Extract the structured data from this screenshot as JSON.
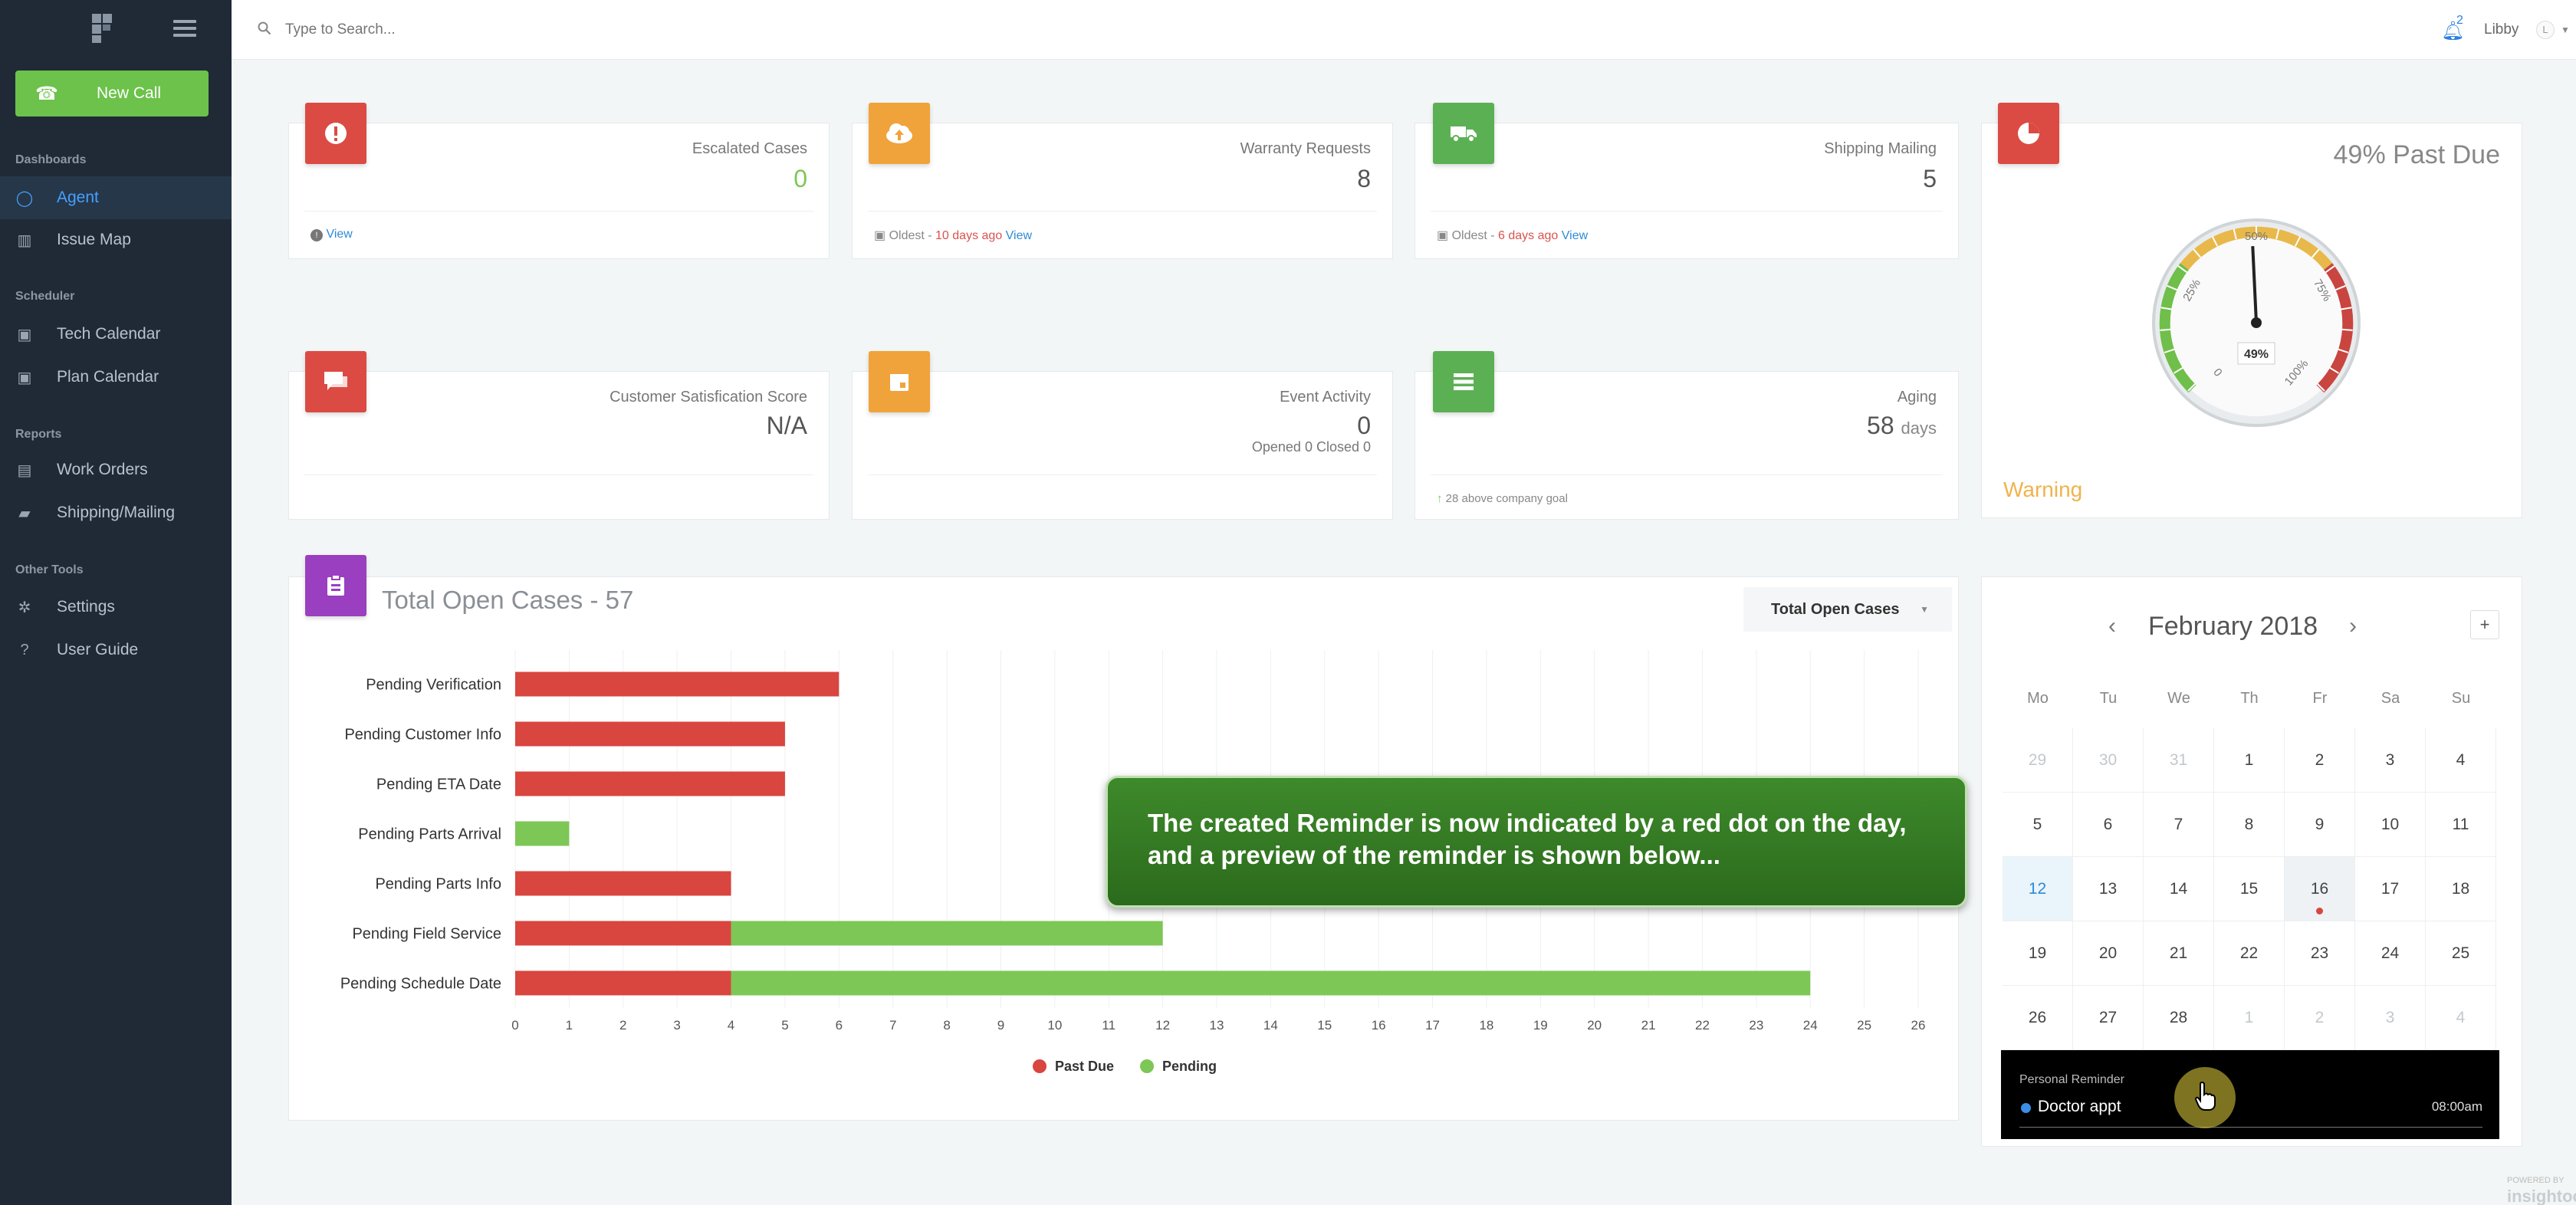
{
  "sidebar": {
    "new_call_label": "New Call",
    "sections": [
      "Dashboards",
      "Scheduler",
      "Reports",
      "Other Tools"
    ],
    "items": [
      {
        "label": "Agent",
        "icon": "circle-icon",
        "active": true
      },
      {
        "label": "Issue Map",
        "icon": "map-icon"
      },
      {
        "label": "Tech Calendar",
        "icon": "calendar-icon"
      },
      {
        "label": "Plan Calendar",
        "icon": "calendar-icon"
      },
      {
        "label": "Work Orders",
        "icon": "file-icon"
      },
      {
        "label": "Shipping/Mailing",
        "icon": "truck-icon"
      },
      {
        "label": "Settings",
        "icon": "gear-icon"
      },
      {
        "label": "User Guide",
        "icon": "help-icon"
      }
    ]
  },
  "topbar": {
    "search_placeholder": "Type to Search...",
    "notifications": "2",
    "user": "Libby",
    "avatar": "L"
  },
  "cards": {
    "escalated": {
      "title": "Escalated Cases",
      "value": "0",
      "foot_link": "View"
    },
    "warranty": {
      "title": "Warranty Requests",
      "value": "8",
      "foot_pre": "Oldest - ",
      "foot_red": "10 days ago",
      "foot_link": "View"
    },
    "shipping": {
      "title": "Shipping Mailing",
      "value": "5",
      "foot_pre": "Oldest - ",
      "foot_red": "6 days ago",
      "foot_link": "View"
    },
    "csat": {
      "title": "Customer Satisfication Score",
      "value": "N/A"
    },
    "event": {
      "title": "Event Activity",
      "value": "0",
      "sub": "Opened 0 Closed 0"
    },
    "aging": {
      "title": "Aging",
      "value": "58",
      "unit": "days",
      "foot": "28 above company goal"
    }
  },
  "gauge": {
    "title": "49% Past Due",
    "value_label": "49%",
    "value": 49,
    "ticks": [
      "25%",
      "50%",
      "75%",
      "100%",
      "0"
    ],
    "status": "Warning"
  },
  "colors": {
    "past_due": "#d9453f",
    "pending": "#7dc756",
    "accent": "#2d8bd6",
    "warning": "#f0b34b"
  },
  "chart_data": {
    "type": "bar",
    "orientation": "horizontal",
    "stacked": true,
    "title": "Total Open Cases - 57",
    "selector": "Total Open Cases",
    "categories": [
      "Pending Verification",
      "Pending Customer Info",
      "Pending ETA Date",
      "Pending Parts Arrival",
      "Pending Parts Info",
      "Pending Field Service",
      "Pending Schedule Date"
    ],
    "series": [
      {
        "name": "Past Due",
        "values": [
          6,
          5,
          5,
          0,
          4,
          4,
          4
        ]
      },
      {
        "name": "Pending",
        "values": [
          0,
          0,
          0,
          1,
          0,
          8,
          20
        ]
      }
    ],
    "xticks": [
      0,
      1,
      2,
      3,
      4,
      5,
      6,
      7,
      8,
      9,
      10,
      11,
      12,
      13,
      14,
      15,
      16,
      17,
      18,
      19,
      20,
      21,
      22,
      23,
      24,
      25,
      26
    ],
    "xlim": [
      0,
      26
    ],
    "legend": "bottom-center",
    "grid": true
  },
  "callout": "The created Reminder is now indicated by a red dot on the day, and a preview of the reminder is shown below...",
  "calendar": {
    "month": "February 2018",
    "prev": "‹",
    "next": "›",
    "add": "+",
    "days": [
      "Mo",
      "Tu",
      "We",
      "Th",
      "Fr",
      "Sa",
      "Su"
    ],
    "weeks": [
      [
        "29",
        "30",
        "31",
        "1",
        "2",
        "3",
        "4"
      ],
      [
        "5",
        "6",
        "7",
        "8",
        "9",
        "10",
        "11"
      ],
      [
        "12",
        "13",
        "14",
        "15",
        "16",
        "17",
        "18"
      ],
      [
        "19",
        "20",
        "21",
        "22",
        "23",
        "24",
        "25"
      ],
      [
        "26",
        "27",
        "28",
        "1",
        "2",
        "3",
        "4"
      ]
    ],
    "reminder": {
      "type": "Personal Reminder",
      "name": "Doctor appt",
      "time": "08:00am"
    }
  },
  "footer": {
    "powered": "POWERED BY",
    "brand": "insightoo"
  }
}
